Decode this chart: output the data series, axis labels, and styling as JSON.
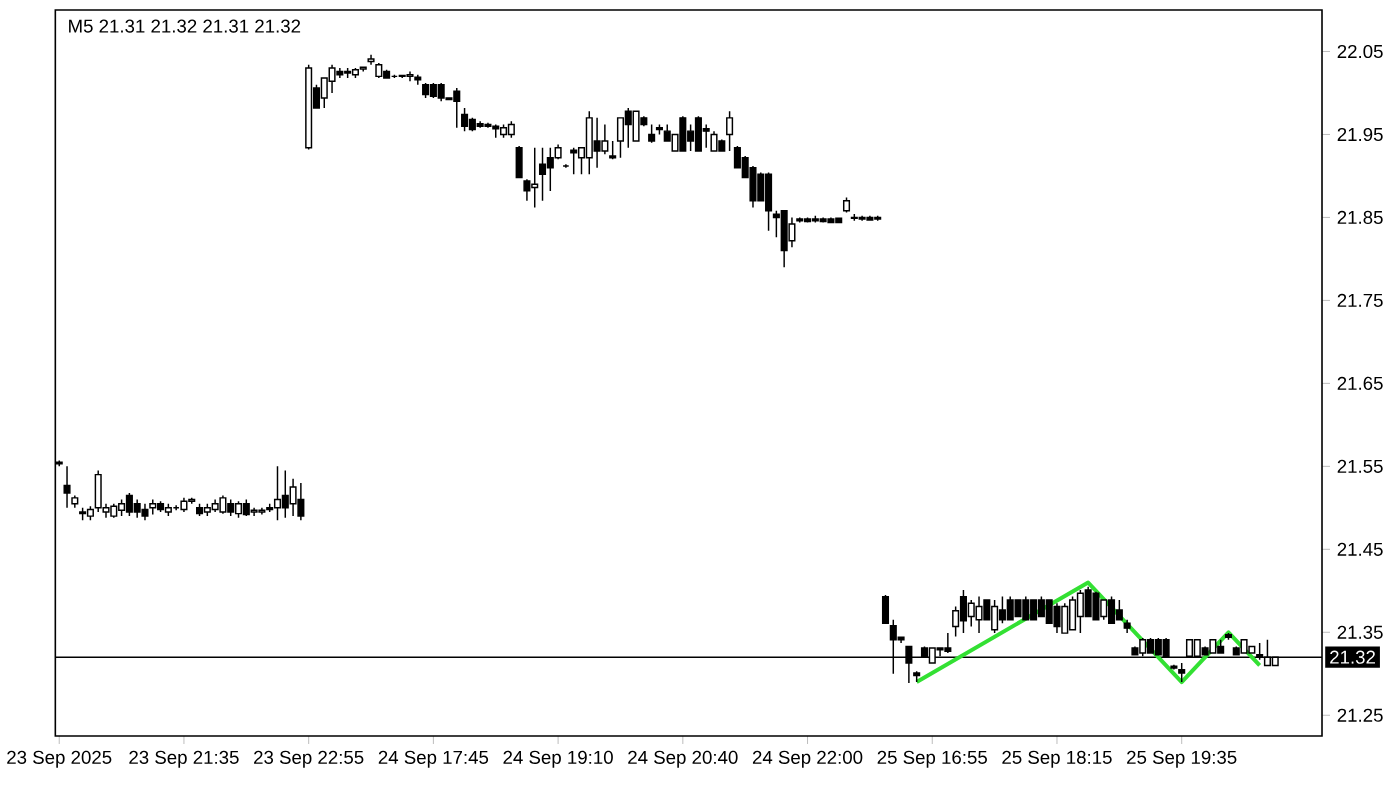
{
  "chart_data": {
    "type": "candlestick",
    "title": "M5 21.31 21.32 21.31 21.32",
    "color": "#000000",
    "categories": [
      "23 Sep 2025",
      null,
      null,
      null,
      null,
      null,
      null,
      null,
      null,
      null,
      null,
      null,
      null,
      null,
      null,
      null,
      "23 Sep 21:35",
      null,
      null,
      null,
      null,
      null,
      null,
      null,
      null,
      null,
      null,
      null,
      null,
      null,
      null,
      null,
      "23 Sep 22:55",
      null,
      null,
      null,
      null,
      null,
      null,
      null,
      null,
      null,
      null,
      null,
      null,
      null,
      null,
      null,
      "24 Sep 17:45",
      null,
      null,
      null,
      null,
      null,
      null,
      null,
      null,
      null,
      null,
      null,
      null,
      null,
      null,
      null,
      "24 Sep 19:10",
      null,
      null,
      null,
      null,
      null,
      null,
      null,
      null,
      null,
      null,
      null,
      null,
      null,
      null,
      null,
      "24 Sep 20:40",
      null,
      null,
      null,
      null,
      null,
      null,
      null,
      null,
      null,
      null,
      null,
      null,
      null,
      null,
      null,
      "24 Sep 22:00",
      null,
      null,
      null,
      null,
      null,
      null,
      null,
      null,
      null,
      null,
      null,
      null,
      null,
      null,
      null,
      "25 Sep 16:55",
      null,
      null,
      null,
      null,
      null,
      null,
      null,
      null,
      null,
      null,
      null,
      null,
      null,
      null,
      null,
      "25 Sep 18:15",
      null,
      null,
      null,
      null,
      null,
      null,
      null,
      null,
      null,
      null,
      null,
      null,
      null,
      null,
      null,
      "25 Sep 19:35",
      null,
      null,
      null,
      null,
      null,
      null,
      null,
      null,
      null,
      null,
      null,
      null
    ],
    "ohlc": [
      [
        21.555,
        21.557,
        21.55,
        21.553
      ],
      [
        21.527,
        21.55,
        21.5,
        21.518
      ],
      [
        21.505,
        21.515,
        21.5,
        21.512
      ],
      [
        21.495,
        21.5,
        21.485,
        21.493
      ],
      [
        21.49,
        21.502,
        21.485,
        21.498
      ],
      [
        21.5,
        21.545,
        21.495,
        21.54
      ],
      [
        21.495,
        21.505,
        21.488,
        21.5
      ],
      [
        21.49,
        21.505,
        21.488,
        21.502
      ],
      [
        21.497,
        21.51,
        21.49,
        21.505
      ],
      [
        21.515,
        21.518,
        21.49,
        21.495
      ],
      [
        21.505,
        21.51,
        21.488,
        21.495
      ],
      [
        21.498,
        21.505,
        21.485,
        21.49
      ],
      [
        21.5,
        21.51,
        21.492,
        21.505
      ],
      [
        21.505,
        21.508,
        21.495,
        21.498
      ],
      [
        21.495,
        21.505,
        21.49,
        21.5
      ],
      [
        21.5,
        21.503,
        21.497,
        21.5
      ],
      [
        21.498,
        21.512,
        21.495,
        21.508
      ],
      [
        21.508,
        21.512,
        21.505,
        21.51
      ],
      [
        21.5,
        21.505,
        21.49,
        21.493
      ],
      [
        21.495,
        21.505,
        21.49,
        21.5
      ],
      [
        21.498,
        21.51,
        21.495,
        21.505
      ],
      [
        21.495,
        21.515,
        21.493,
        21.512
      ],
      [
        21.505,
        21.51,
        21.49,
        21.495
      ],
      [
        21.493,
        21.508,
        21.488,
        21.505
      ],
      [
        21.505,
        21.51,
        21.49,
        21.492
      ],
      [
        21.495,
        21.5,
        21.49,
        21.497
      ],
      [
        21.495,
        21.5,
        21.492,
        21.497
      ],
      [
        21.5,
        21.505,
        21.495,
        21.498
      ],
      [
        21.5,
        21.55,
        21.485,
        21.51
      ],
      [
        21.515,
        21.545,
        21.488,
        21.5
      ],
      [
        21.505,
        21.535,
        21.49,
        21.525
      ],
      [
        21.51,
        21.53,
        21.485,
        21.49
      ],
      [
        21.934,
        22.034,
        21.932,
        22.03
      ],
      [
        22.006,
        22.01,
        21.982,
        21.982
      ],
      [
        21.994,
        22.018,
        21.982,
        22.018
      ],
      [
        22.014,
        22.034,
        22.0,
        22.03
      ],
      [
        22.026,
        22.03,
        22.018,
        22.022
      ],
      [
        22.026,
        22.03,
        22.018,
        22.024
      ],
      [
        22.022,
        22.03,
        22.018,
        22.028
      ],
      [
        22.029,
        22.032,
        22.026,
        22.031
      ],
      [
        22.038,
        22.046,
        22.034,
        22.041
      ],
      [
        22.02,
        22.036,
        22.018,
        22.034
      ],
      [
        22.026,
        22.028,
        22.018,
        22.018
      ],
      [
        22.02,
        22.022,
        22.018,
        22.02
      ],
      [
        22.02,
        22.022,
        22.018,
        22.021
      ],
      [
        22.02,
        22.026,
        22.014,
        22.022
      ],
      [
        22.019,
        22.022,
        22.01,
        22.016
      ],
      [
        22.01,
        22.012,
        21.994,
        21.998
      ],
      [
        22.01,
        22.012,
        21.994,
        21.996
      ],
      [
        22.01,
        22.012,
        21.99,
        21.994
      ],
      [
        21.994,
        21.994,
        21.992,
        21.992
      ],
      [
        22.002,
        22.006,
        21.958,
        21.99
      ],
      [
        21.974,
        21.982,
        21.954,
        21.96
      ],
      [
        21.968,
        21.97,
        21.954,
        21.956
      ],
      [
        21.963,
        21.966,
        21.958,
        21.96
      ],
      [
        21.962,
        21.964,
        21.958,
        21.96
      ],
      [
        21.96,
        21.962,
        21.946,
        21.957
      ],
      [
        21.95,
        21.962,
        21.946,
        21.958
      ],
      [
        21.95,
        21.966,
        21.946,
        21.962
      ],
      [
        21.934,
        21.936,
        21.898,
        21.898
      ],
      [
        21.894,
        21.896,
        21.87,
        21.882
      ],
      [
        21.886,
        21.934,
        21.862,
        21.89
      ],
      [
        21.914,
        21.934,
        21.87,
        21.902
      ],
      [
        21.922,
        21.934,
        21.882,
        21.91
      ],
      [
        21.922,
        21.938,
        21.92,
        21.934
      ],
      [
        21.912,
        21.914,
        21.91,
        21.912
      ],
      [
        21.931,
        21.934,
        21.902,
        21.928
      ],
      [
        21.922,
        21.934,
        21.902,
        21.934
      ],
      [
        21.922,
        21.978,
        21.902,
        21.97
      ],
      [
        21.942,
        21.97,
        21.91,
        21.93
      ],
      [
        21.93,
        21.962,
        21.926,
        21.942
      ],
      [
        21.924,
        21.942,
        21.92,
        21.922
      ],
      [
        21.942,
        21.97,
        21.922,
        21.97
      ],
      [
        21.978,
        21.982,
        21.934,
        21.962
      ],
      [
        21.942,
        21.978,
        21.942,
        21.978
      ],
      [
        21.97,
        21.972,
        21.96,
        21.962
      ],
      [
        21.95,
        21.962,
        21.94,
        21.942
      ],
      [
        21.958,
        21.962,
        21.95,
        21.956
      ],
      [
        21.954,
        21.962,
        21.942,
        21.942
      ],
      [
        21.93,
        21.95,
        21.93,
        21.95
      ],
      [
        21.97,
        21.972,
        21.93,
        21.93
      ],
      [
        21.954,
        21.962,
        21.93,
        21.942
      ],
      [
        21.97,
        21.972,
        21.93,
        21.93
      ],
      [
        21.957,
        21.962,
        21.934,
        21.954
      ],
      [
        21.93,
        21.954,
        21.93,
        21.95
      ],
      [
        21.942,
        21.944,
        21.93,
        21.93
      ],
      [
        21.95,
        21.978,
        21.93,
        21.97
      ],
      [
        21.934,
        21.936,
        21.91,
        21.91
      ],
      [
        21.922,
        21.924,
        21.898,
        21.898
      ],
      [
        21.91,
        21.912,
        21.862,
        21.87
      ],
      [
        21.902,
        21.904,
        21.87,
        21.87
      ],
      [
        21.902,
        21.904,
        21.834,
        21.858
      ],
      [
        21.854,
        21.858,
        21.826,
        21.85
      ],
      [
        21.858,
        21.858,
        21.79,
        21.81
      ],
      [
        21.822,
        21.85,
        21.814,
        21.842
      ],
      [
        21.848,
        21.85,
        21.844,
        21.846
      ],
      [
        21.848,
        21.85,
        21.844,
        21.845
      ],
      [
        21.848,
        21.852,
        21.844,
        21.846
      ],
      [
        21.848,
        21.85,
        21.844,
        21.845
      ],
      [
        21.848,
        21.85,
        21.843,
        21.844
      ],
      [
        21.849,
        21.85,
        21.843,
        21.844
      ],
      [
        21.858,
        21.874,
        21.856,
        21.87
      ],
      [
        21.85,
        21.854,
        21.846,
        21.849
      ],
      [
        21.848,
        21.852,
        21.846,
        21.85
      ],
      [
        21.85,
        21.852,
        21.846,
        21.847
      ],
      [
        21.848,
        21.852,
        21.846,
        21.85
      ],
      [
        21.393,
        21.395,
        21.361,
        21.361
      ],
      [
        21.358,
        21.365,
        21.3,
        21.341
      ],
      [
        21.344,
        21.345,
        21.337,
        21.341
      ],
      [
        21.333,
        21.333,
        21.289,
        21.313
      ],
      [
        21.301,
        21.303,
        21.29,
        21.298
      ],
      [
        21.331,
        21.333,
        21.32,
        21.321
      ],
      [
        21.313,
        21.331,
        21.313,
        21.331
      ],
      [
        21.331,
        21.331,
        21.321,
        21.329
      ],
      [
        21.331,
        21.349,
        21.325,
        21.327
      ],
      [
        21.357,
        21.381,
        21.345,
        21.376
      ],
      [
        21.393,
        21.401,
        21.349,
        21.364
      ],
      [
        21.369,
        21.389,
        21.357,
        21.385
      ],
      [
        21.365,
        21.393,
        21.349,
        21.381
      ],
      [
        21.389,
        21.389,
        21.365,
        21.365
      ],
      [
        21.353,
        21.389,
        21.349,
        21.381
      ],
      [
        21.377,
        21.393,
        21.361,
        21.365
      ],
      [
        21.389,
        21.393,
        21.365,
        21.365
      ],
      [
        21.389,
        21.389,
        21.369,
        21.369
      ],
      [
        21.389,
        21.393,
        21.365,
        21.365
      ],
      [
        21.389,
        21.389,
        21.365,
        21.365
      ],
      [
        21.389,
        21.393,
        21.369,
        21.369
      ],
      [
        21.389,
        21.389,
        21.361,
        21.361
      ],
      [
        21.381,
        21.385,
        21.349,
        21.357
      ],
      [
        21.349,
        21.385,
        21.349,
        21.381
      ],
      [
        21.353,
        21.393,
        21.353,
        21.389
      ],
      [
        21.369,
        21.401,
        21.349,
        21.397
      ],
      [
        21.401,
        21.405,
        21.369,
        21.369
      ],
      [
        21.397,
        21.399,
        21.365,
        21.365
      ],
      [
        21.369,
        21.389,
        21.365,
        21.389
      ],
      [
        21.389,
        21.393,
        21.361,
        21.361
      ],
      [
        21.377,
        21.389,
        21.365,
        21.365
      ],
      [
        21.361,
        21.365,
        21.349,
        21.355
      ],
      [
        21.331,
        21.333,
        21.323,
        21.323
      ],
      [
        21.325,
        21.343,
        21.321,
        21.341
      ],
      [
        21.341,
        21.343,
        21.325,
        21.325
      ],
      [
        21.341,
        21.343,
        21.323,
        21.323
      ],
      [
        21.341,
        21.343,
        21.321,
        21.321
      ],
      [
        21.309,
        21.311,
        21.305,
        21.307
      ],
      [
        21.305,
        21.313,
        21.29,
        21.301
      ],
      [
        21.321,
        21.341,
        21.321,
        21.341
      ],
      [
        21.321,
        21.341,
        21.321,
        21.341
      ],
      [
        21.331,
        21.333,
        21.323,
        21.323
      ],
      [
        21.325,
        21.341,
        21.325,
        21.341
      ],
      [
        21.333,
        21.341,
        21.325,
        21.325
      ],
      [
        21.347,
        21.349,
        21.341,
        21.344
      ],
      [
        21.331,
        21.333,
        21.323,
        21.323
      ],
      [
        21.325,
        21.341,
        21.325,
        21.341
      ],
      [
        21.325,
        21.333,
        21.325,
        21.333
      ],
      [
        21.323,
        21.337,
        21.317,
        21.32
      ],
      [
        21.31,
        21.341,
        21.309,
        21.32
      ],
      [
        21.31,
        21.32,
        21.31,
        21.32
      ]
    ],
    "series": [
      {
        "type": "line",
        "color": "#33e033",
        "values": [
          null,
          null,
          null,
          null,
          null,
          null,
          null,
          null,
          null,
          null,
          null,
          null,
          null,
          null,
          null,
          null,
          null,
          null,
          null,
          null,
          null,
          null,
          null,
          null,
          null,
          null,
          null,
          null,
          null,
          null,
          null,
          null,
          null,
          null,
          null,
          null,
          null,
          null,
          null,
          null,
          null,
          null,
          null,
          null,
          null,
          null,
          null,
          null,
          null,
          null,
          null,
          null,
          null,
          null,
          null,
          null,
          null,
          null,
          null,
          null,
          null,
          null,
          null,
          null,
          null,
          null,
          null,
          null,
          null,
          null,
          null,
          null,
          null,
          null,
          null,
          null,
          null,
          null,
          null,
          null,
          null,
          null,
          null,
          null,
          null,
          null,
          null,
          null,
          null,
          null,
          null,
          null,
          null,
          null,
          null,
          null,
          null,
          null,
          null,
          null,
          null,
          null,
          null,
          null,
          null,
          null,
          null,
          null,
          null,
          null,
          21.29,
          null,
          null,
          null,
          null,
          null,
          null,
          null,
          null,
          null,
          null,
          null,
          null,
          null,
          null,
          null,
          null,
          null,
          null,
          null,
          null,
          null,
          21.41,
          null,
          null,
          null,
          null,
          null,
          null,
          null,
          null,
          null,
          null,
          null,
          21.29,
          null,
          null,
          null,
          null,
          null,
          21.35,
          null,
          null,
          null,
          21.31,
          null,
          null
        ]
      }
    ],
    "ylim": [
      21.225,
      22.1
    ],
    "yticks": [
      21.25,
      21.35,
      21.45,
      21.55,
      21.65,
      21.75,
      21.85,
      21.95,
      22.05
    ],
    "ref_lines": [
      {
        "axis": "y",
        "value": 21.32,
        "label": "21.32",
        "color": "#000000"
      }
    ]
  }
}
